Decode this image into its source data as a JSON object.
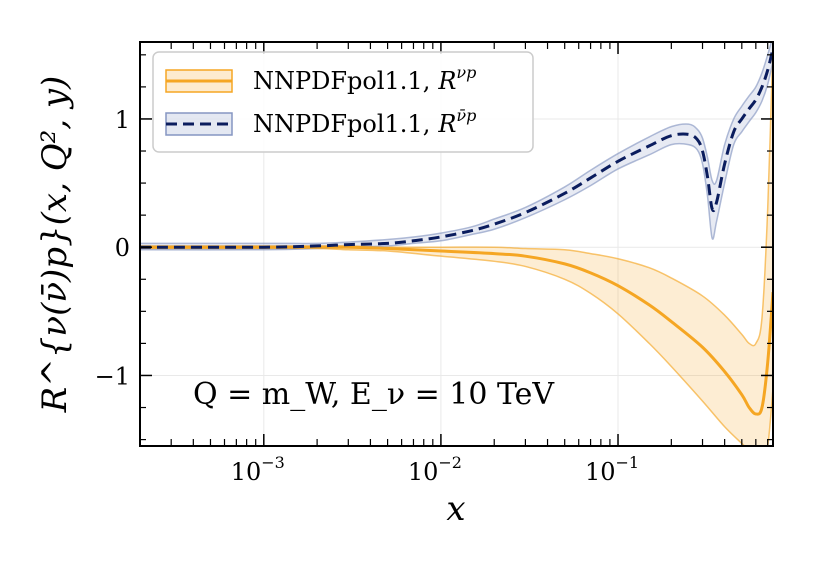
{
  "chart_data": {
    "type": "line",
    "xscale": "log",
    "xlim": [
      0.0002,
      0.75
    ],
    "ylim": [
      -1.55,
      1.6
    ],
    "grid": true,
    "legend_position": "top-left",
    "xlabel": "x",
    "ylabel": "R^{ν(ν̄)p}(x, Q², y)",
    "annotation": "Q = m_W, E_ν = 10 TeV",
    "x_ticks": [
      {
        "value": 0.001,
        "base": "10",
        "exp": "−3"
      },
      {
        "value": 0.01,
        "base": "10",
        "exp": "−2"
      },
      {
        "value": 0.1,
        "base": "10",
        "exp": "−1"
      }
    ],
    "y_ticks": [
      {
        "value": -1,
        "label": "−1"
      },
      {
        "value": 0,
        "label": "0"
      },
      {
        "value": 1,
        "label": "1"
      }
    ],
    "series": [
      {
        "name": "NNPDFpol1.1, R^{νp}",
        "legend_main": "NNPDFpol1.1,",
        "legend_sym": "R",
        "legend_sup": "νp",
        "color": "#f5a623",
        "band_color": "#f5a623",
        "style": "solid",
        "x": [
          0.0002,
          0.001,
          0.002,
          0.003,
          0.005,
          0.01,
          0.02,
          0.03,
          0.05,
          0.07,
          0.1,
          0.15,
          0.2,
          0.3,
          0.4,
          0.5,
          0.55,
          0.6,
          0.65,
          0.7,
          0.75
        ],
        "y": [
          0.0,
          0.0,
          0.0,
          0.0,
          -0.01,
          -0.03,
          -0.05,
          -0.07,
          -0.13,
          -0.2,
          -0.3,
          -0.45,
          -0.58,
          -0.78,
          -0.97,
          -1.15,
          -1.25,
          -1.3,
          -1.25,
          -0.9,
          -0.35
        ],
        "lower": [
          -0.01,
          -0.01,
          -0.01,
          -0.02,
          -0.03,
          -0.07,
          -0.11,
          -0.15,
          -0.25,
          -0.36,
          -0.52,
          -0.75,
          -0.93,
          -1.2,
          -1.4,
          -1.53,
          -1.58,
          -1.6,
          -1.6,
          -1.55,
          -1.1
        ],
        "upper": [
          0.01,
          0.01,
          0.01,
          0.01,
          0.0,
          0.0,
          0.0,
          -0.01,
          -0.02,
          -0.05,
          -0.09,
          -0.16,
          -0.24,
          -0.38,
          -0.53,
          -0.68,
          -0.75,
          -0.75,
          -0.55,
          0.3,
          1.6
        ]
      },
      {
        "name": "NNPDFpol1.1, R^{ν̄p}",
        "legend_main": "NNPDFpol1.1,",
        "legend_sym": "R",
        "legend_sup": "ν̄p",
        "color": "#0b1d5e",
        "band_color": "#8596c2",
        "style": "dashed",
        "x": [
          0.0002,
          0.001,
          0.002,
          0.003,
          0.005,
          0.007,
          0.01,
          0.015,
          0.02,
          0.03,
          0.05,
          0.07,
          0.1,
          0.15,
          0.2,
          0.25,
          0.28,
          0.3,
          0.32,
          0.34,
          0.36,
          0.4,
          0.45,
          0.5,
          0.55,
          0.6,
          0.65,
          0.7,
          0.75
        ],
        "y": [
          0.0,
          0.0,
          0.01,
          0.02,
          0.03,
          0.05,
          0.08,
          0.13,
          0.18,
          0.27,
          0.42,
          0.54,
          0.67,
          0.79,
          0.87,
          0.88,
          0.84,
          0.75,
          0.55,
          0.3,
          0.35,
          0.65,
          0.9,
          1.0,
          1.08,
          1.15,
          1.25,
          1.38,
          1.55
        ],
        "lower": [
          -0.02,
          -0.02,
          -0.01,
          0.0,
          0.01,
          0.03,
          0.05,
          0.1,
          0.14,
          0.23,
          0.37,
          0.48,
          0.61,
          0.72,
          0.8,
          0.8,
          0.76,
          0.65,
          0.4,
          0.07,
          0.2,
          0.5,
          0.8,
          0.9,
          0.98,
          1.05,
          1.14,
          1.27,
          1.45
        ],
        "upper": [
          0.03,
          0.03,
          0.03,
          0.04,
          0.06,
          0.08,
          0.11,
          0.16,
          0.22,
          0.31,
          0.47,
          0.6,
          0.73,
          0.86,
          0.94,
          0.96,
          0.92,
          0.85,
          0.7,
          0.52,
          0.52,
          0.8,
          1.0,
          1.1,
          1.18,
          1.25,
          1.36,
          1.5,
          1.65
        ]
      }
    ]
  }
}
